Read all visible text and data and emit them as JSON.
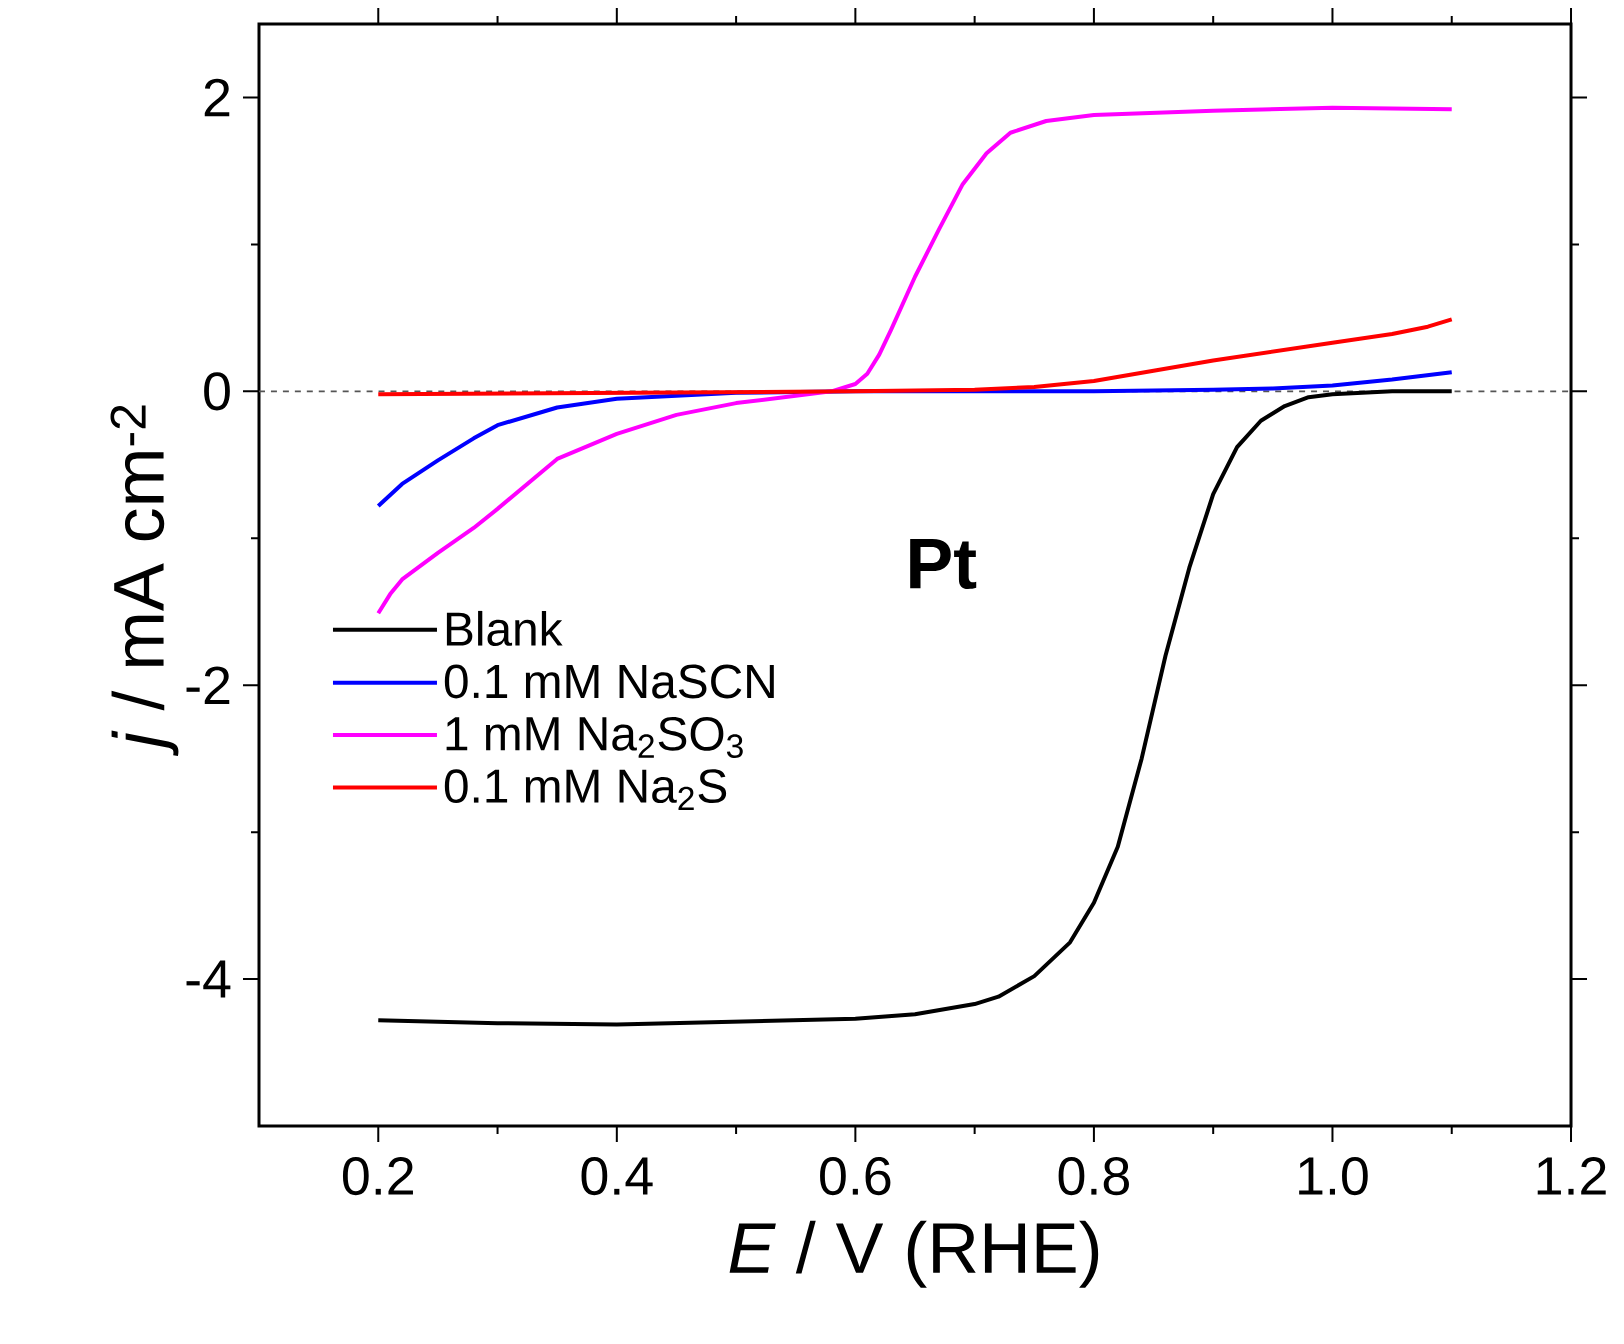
{
  "chart_data": {
    "type": "line",
    "xlabel": "*E* / V (RHE)",
    "ylabel": "*j* / mA cm$^{-2}$",
    "xlim": [
      0.1,
      1.2
    ],
    "xticks": [
      0.2,
      0.4,
      0.6,
      0.8,
      {
        "value": 1.0,
        "label": "1.0"
      },
      1.2
    ],
    "ylim": [
      -5,
      2.5
    ],
    "yticks": [
      -4,
      -2,
      0,
      2
    ],
    "grid": false,
    "legend": "left",
    "marker": "none",
    "line_style": "solid",
    "annotations": [
      "**Pt**"
    ],
    "ref_lines": [
      {
        "axis": "y",
        "value": 0,
        "color": "#555555",
        "line_style": "dashed"
      }
    ],
    "series": [
      {
        "name": "Blank",
        "color": "#000000",
        "x": [
          0.2,
          0.3,
          0.4,
          0.5,
          0.6,
          0.65,
          0.7,
          0.72,
          0.75,
          0.78,
          0.8,
          0.82,
          0.84,
          0.86,
          0.88,
          0.9,
          0.92,
          0.94,
          0.96,
          0.98,
          1.0,
          1.05,
          1.1
        ],
        "values": [
          -4.28,
          -4.3,
          -4.31,
          -4.29,
          -4.27,
          -4.24,
          -4.17,
          -4.12,
          -3.98,
          -3.75,
          -3.48,
          -3.1,
          -2.5,
          -1.8,
          -1.2,
          -0.7,
          -0.38,
          -0.2,
          -0.1,
          -0.04,
          -0.02,
          0,
          0
        ]
      },
      {
        "name": "0.1 mM NaSCN",
        "color": "#0000ff",
        "x": [
          0.2,
          0.22,
          0.25,
          0.28,
          0.3,
          0.35,
          0.4,
          0.5,
          0.6,
          0.8,
          0.9,
          0.95,
          1.0,
          1.05,
          1.1
        ],
        "values": [
          -0.78,
          -0.63,
          -0.47,
          -0.32,
          -0.23,
          -0.11,
          -0.05,
          -0.01,
          0,
          0,
          0.01,
          0.02,
          0.04,
          0.08,
          0.13
        ]
      },
      {
        "name": "1 mM Na$_{2}$SO$_{3}$",
        "color": "#ff00ff",
        "x": [
          0.2,
          0.21,
          0.22,
          0.25,
          0.28,
          0.3,
          0.35,
          0.4,
          0.45,
          0.5,
          0.55,
          0.58,
          0.6,
          0.61,
          0.62,
          0.63,
          0.65,
          0.67,
          0.69,
          0.71,
          0.73,
          0.76,
          0.8,
          0.9,
          1.0,
          1.1
        ],
        "values": [
          -1.51,
          -1.38,
          -1.28,
          -1.1,
          -0.93,
          -0.8,
          -0.46,
          -0.29,
          -0.16,
          -0.08,
          -0.03,
          0,
          0.05,
          0.12,
          0.25,
          0.42,
          0.78,
          1.1,
          1.41,
          1.62,
          1.76,
          1.84,
          1.88,
          1.91,
          1.93,
          1.92
        ]
      },
      {
        "name": "0.1 mM Na$_{2}$S",
        "color": "#ff0000",
        "x": [
          0.2,
          0.4,
          0.6,
          0.7,
          0.75,
          0.8,
          0.85,
          0.9,
          0.95,
          1.0,
          1.05,
          1.08,
          1.1
        ],
        "values": [
          -0.02,
          -0.01,
          0,
          0.01,
          0.03,
          0.07,
          0.14,
          0.21,
          0.27,
          0.33,
          0.39,
          0.44,
          0.49
        ]
      }
    ]
  }
}
